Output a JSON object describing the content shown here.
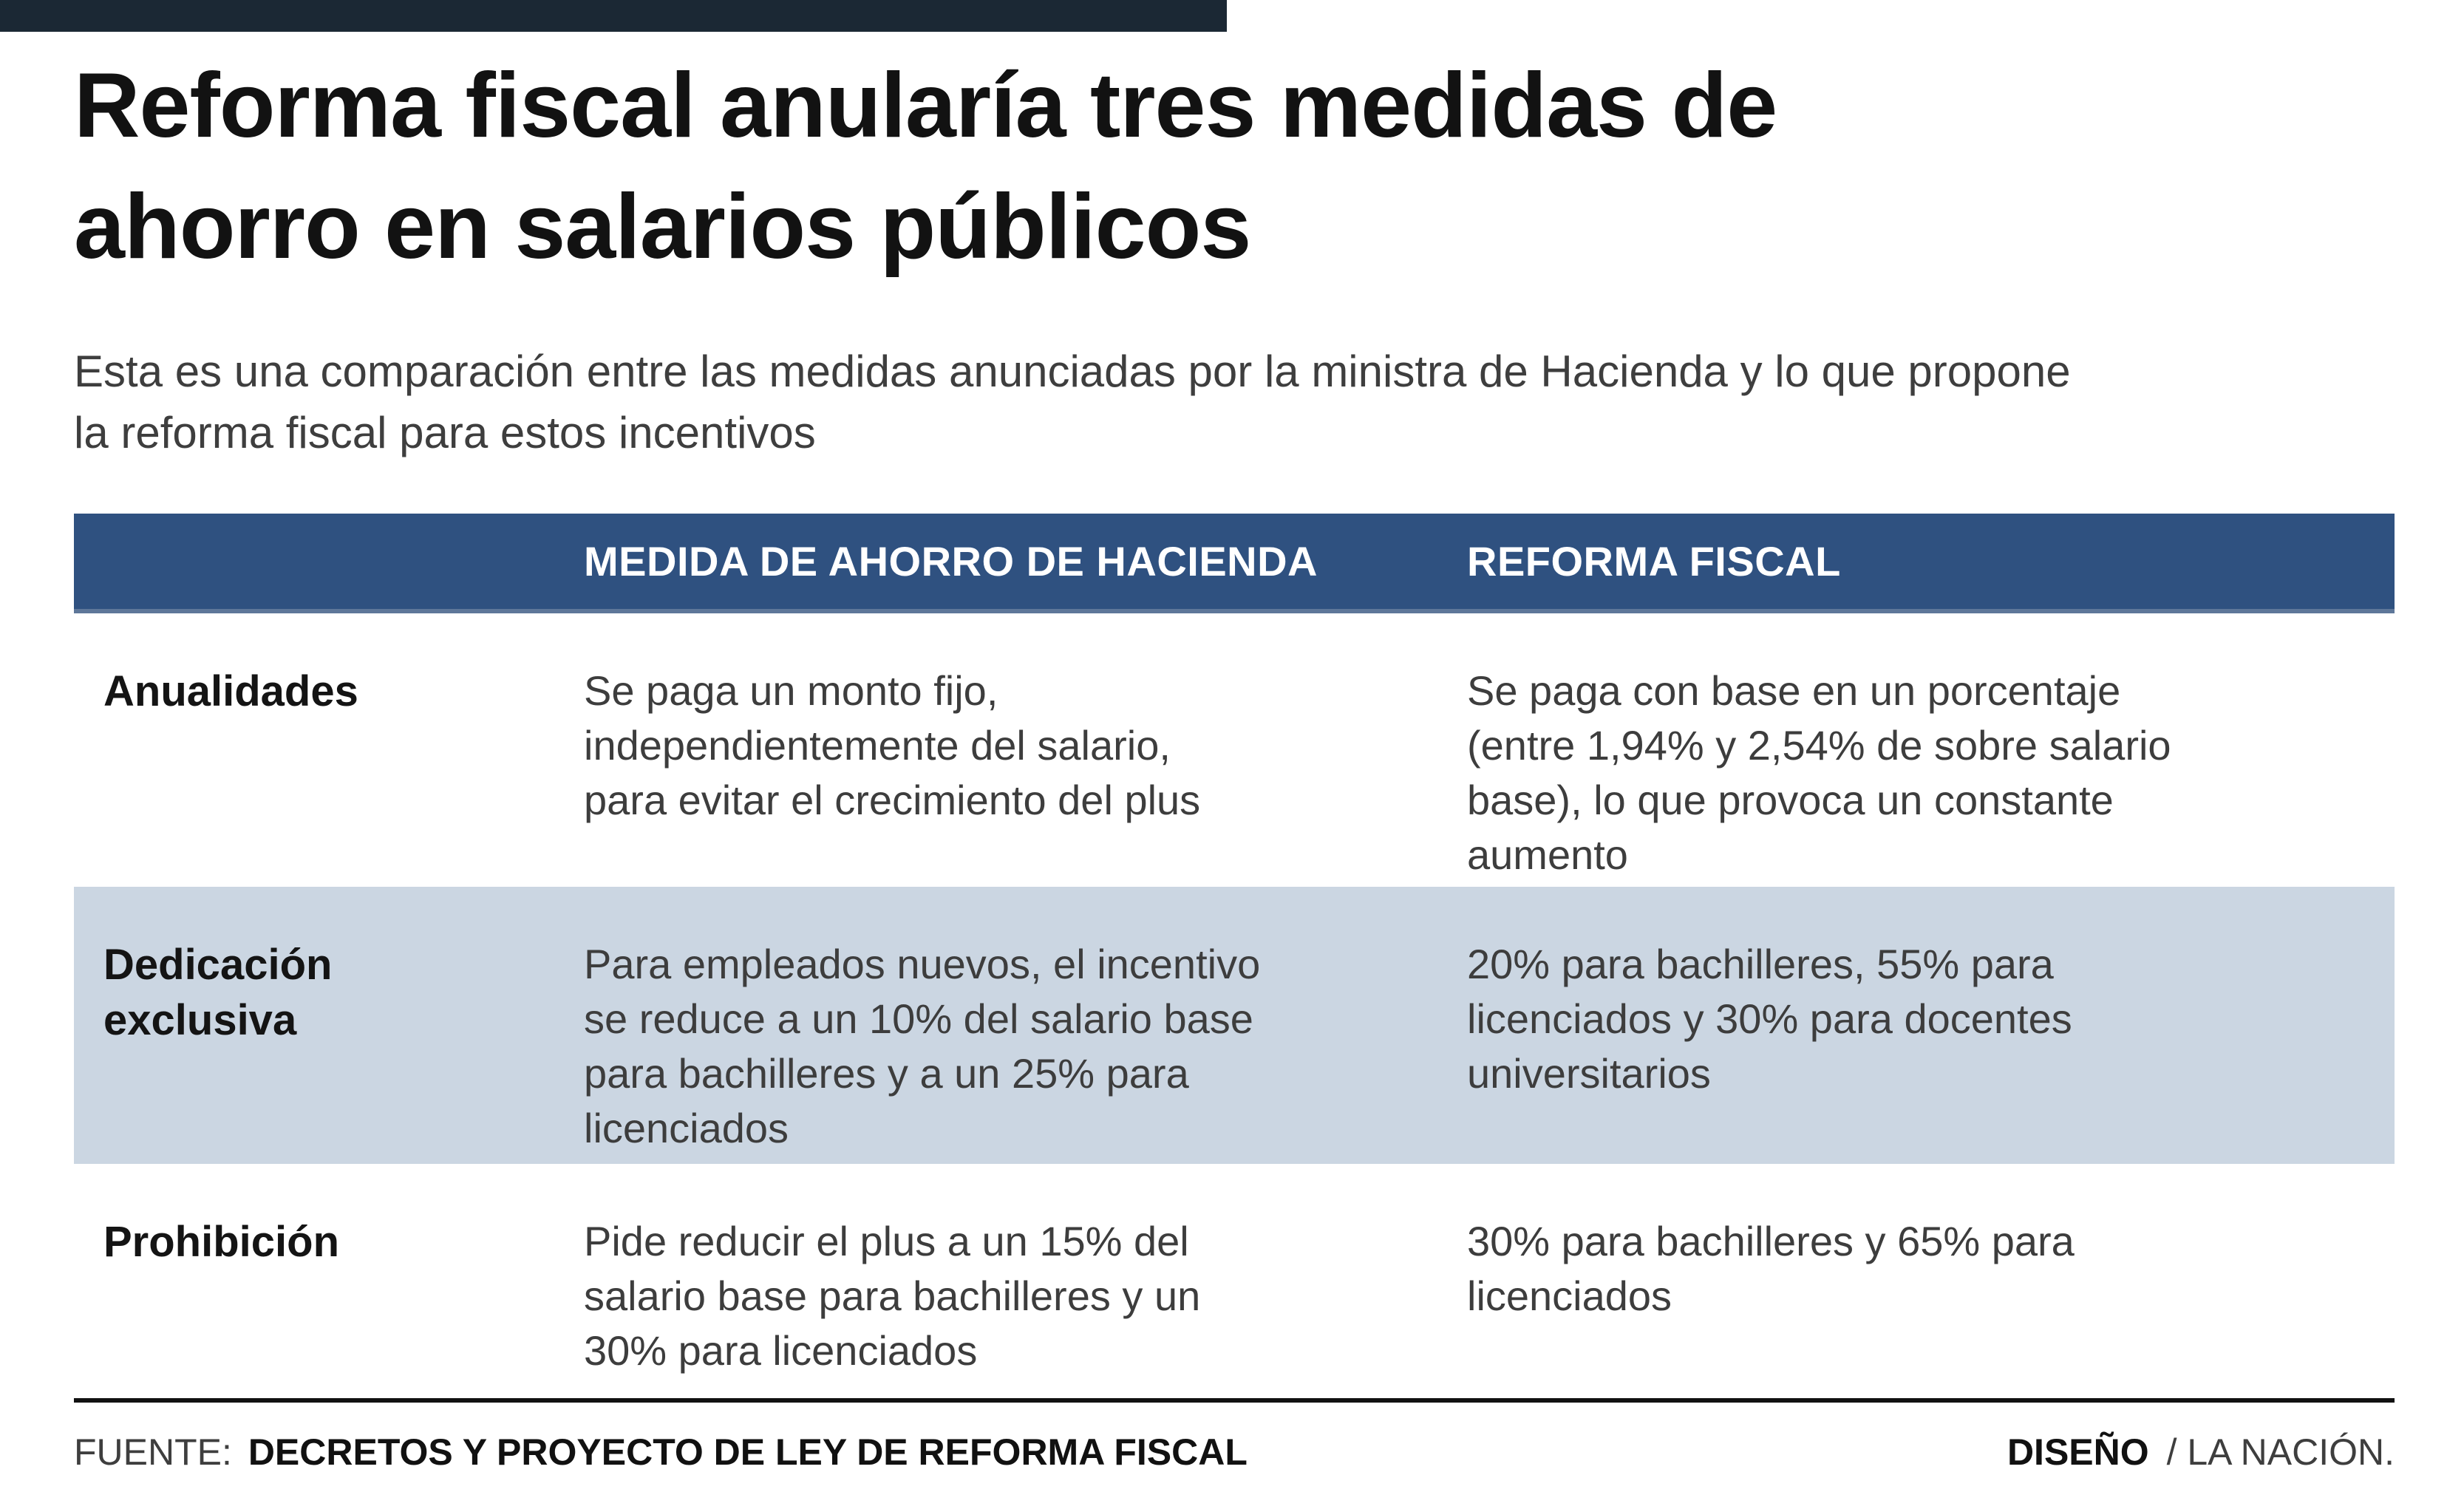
{
  "page": {
    "title": "Reforma fiscal anularía tres medidas de\nahorro en salarios públicos",
    "subtitle": "Esta es una comparación entre las medidas anunciadas por la ministra de Hacienda y lo que propone\nla reforma fiscal para estos incentivos"
  },
  "table": {
    "columns": [
      "",
      "MEDIDA DE AHORRO DE HACIENDA",
      "REFORMA FISCAL"
    ],
    "rows": [
      {
        "label": "Anualidades",
        "hacienda": "Se paga un monto fijo,\nindependientemente del salario,\npara evitar el crecimiento del plus",
        "reforma": "Se paga con base en un porcentaje\n(entre 1,94% y 2,54% de sobre salario\nbase), lo que provoca un constante\naumento"
      },
      {
        "label": "Dedicación\nexclusiva",
        "hacienda": "Para empleados nuevos, el incentivo\nse reduce a un 10% del salario base\npara bachilleres y a un 25% para\nlicenciados",
        "reforma": "20% para bachilleres, 55% para\nlicenciados y 30% para docentes\nuniversitarios"
      },
      {
        "label": "Prohibición",
        "hacienda": "Pide reducir el plus a un 15% del\nsalario base para bachilleres y un\n30% para licenciados",
        "reforma": "30% para bachilleres y 65% para\nlicenciados"
      }
    ]
  },
  "footer": {
    "source_label": "FUENTE:",
    "source_value": "DECRETOS Y PROYECTO DE LEY DE REFORMA FISCAL",
    "design_label": "DISEÑO",
    "design_value": "/ LA NACIÓN."
  },
  "colors": {
    "top_bar": "#1b2834",
    "header_blue": "#2f5180",
    "row_highlight": "#cbd6e2",
    "rule_black": "#111111"
  },
  "chart_data": {
    "type": "table",
    "title": "Reforma fiscal anularía tres medidas de ahorro en salarios públicos",
    "subtitle": "Esta es una comparación entre las medidas anunciadas por la ministra de Hacienda y lo que propone la reforma fiscal para estos incentivos",
    "columns": [
      "",
      "MEDIDA DE AHORRO DE HACIENDA",
      "REFORMA FISCAL"
    ],
    "rows": [
      [
        "Anualidades",
        "Se paga un monto fijo, independientemente del salario, para evitar el crecimiento del plus",
        "Se paga con base en un porcentaje (entre 1,94% y 2,54% de sobre salario base), lo que provoca un constante aumento"
      ],
      [
        "Dedicación exclusiva",
        "Para empleados nuevos, el incentivo se reduce a un 10% del salario base para bachilleres y a un 25% para licenciados",
        "20% para bachilleres, 55% para licenciados y 30% para docentes universitarios"
      ],
      [
        "Prohibición",
        "Pide reducir el plus a un 15% del salario base para bachilleres y un 30% para licenciados",
        "30% para bachilleres y 65% para licenciados"
      ]
    ],
    "source": "FUENTE: DECRETOS Y PROYECTO DE LEY DE REFORMA FISCAL",
    "credit": "DISEÑO / LA NACIÓN.",
    "legend_position": "none",
    "grid": false
  }
}
